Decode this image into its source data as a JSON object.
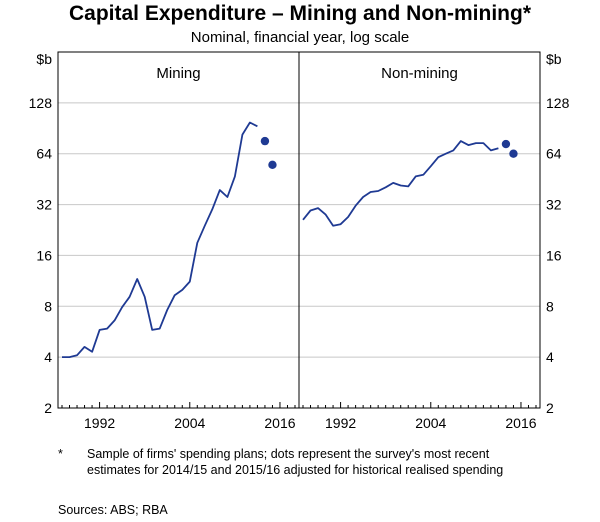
{
  "title": "Capital Expenditure – Mining and Non-mining*",
  "subtitle": "Nominal, financial year, log scale",
  "footnote_marker": "*",
  "footnote": "Sample of firms' spending plans;  dots represent the survey's most recent estimates for 2014/15 and 2015/16 adjusted for historical realised spending",
  "sources": "Sources:  ABS; RBA",
  "chart_data": {
    "type": "line",
    "yscale": "log",
    "yunit_left": "$b",
    "yunit_right": "$b",
    "yticks": [
      2,
      4,
      8,
      16,
      32,
      64,
      128
    ],
    "ylim": [
      2,
      256
    ],
    "xlim": [
      1987,
      2018
    ],
    "xticks": [
      1992,
      2004,
      2016
    ],
    "grid": true,
    "panels": [
      {
        "label": "Mining",
        "series": [
          {
            "x": [
              1987,
              1988,
              1989,
              1990,
              1991,
              1992,
              1993,
              1994,
              1995,
              1996,
              1997,
              1998,
              1999,
              2000,
              2001,
              2002,
              2003,
              2004,
              2005,
              2006,
              2007,
              2008,
              2009,
              2010,
              2011,
              2012,
              2013
            ],
            "y": [
              4.0,
              4.0,
              4.1,
              4.6,
              4.3,
              5.8,
              5.9,
              6.6,
              7.9,
              9.1,
              11.6,
              9.1,
              5.8,
              5.9,
              7.6,
              9.3,
              10.0,
              11.2,
              19.0,
              24.0,
              30.0,
              39.0,
              35.5,
              47.0,
              83.0,
              98.0,
              93.0
            ]
          }
        ],
        "estimates": [
          {
            "x": 2014,
            "y": 76
          },
          {
            "x": 2015,
            "y": 55
          }
        ]
      },
      {
        "label": "Non-mining",
        "series": [
          {
            "x": [
              1987,
              1988,
              1989,
              1990,
              1991,
              1992,
              1993,
              1994,
              1995,
              1996,
              1997,
              1998,
              1999,
              2000,
              2001,
              2002,
              2003,
              2004,
              2005,
              2006,
              2007,
              2008,
              2009,
              2010,
              2011,
              2012,
              2013
            ],
            "y": [
              26.0,
              29.5,
              30.5,
              28.0,
              24.0,
              24.5,
              27.0,
              31.5,
              35.5,
              38.0,
              38.5,
              40.5,
              43.0,
              41.5,
              41.0,
              47.0,
              48.0,
              54.0,
              61.0,
              64.0,
              67.0,
              76.0,
              72.0,
              74.0,
              74.0,
              67.0,
              69.0
            ]
          }
        ],
        "estimates": [
          {
            "x": 2014,
            "y": 73
          },
          {
            "x": 2015,
            "y": 64
          }
        ]
      }
    ]
  }
}
